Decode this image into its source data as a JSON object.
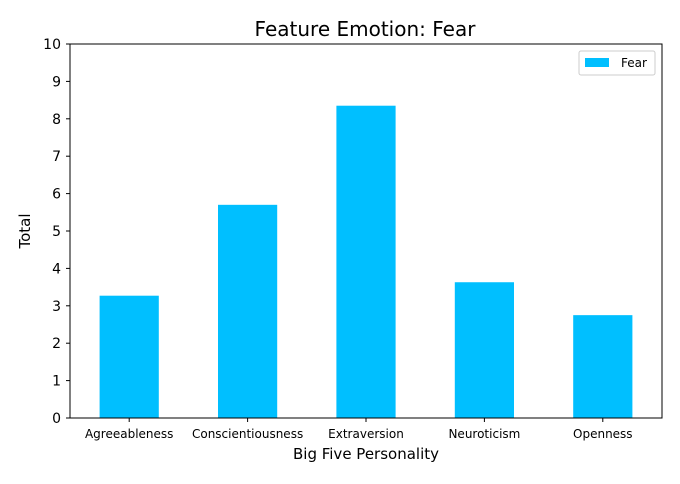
{
  "chart_data": {
    "type": "bar",
    "title": "Feature Emotion: Fear",
    "xlabel": "Big Five Personality",
    "ylabel": "Total",
    "categories": [
      "Agreeableness",
      "Conscientiousness",
      "Extraversion",
      "Neuroticism",
      "Openness"
    ],
    "series": [
      {
        "name": "Fear",
        "values": [
          3.27,
          5.7,
          8.35,
          3.63,
          2.75
        ],
        "color": "#00bfff"
      }
    ],
    "ylim": [
      0,
      10
    ],
    "yticks": [
      "0",
      "1",
      "2",
      "3",
      "4",
      "5",
      "6",
      "7",
      "8",
      "9",
      "10"
    ],
    "grid": false,
    "legend_position": "top-right"
  }
}
